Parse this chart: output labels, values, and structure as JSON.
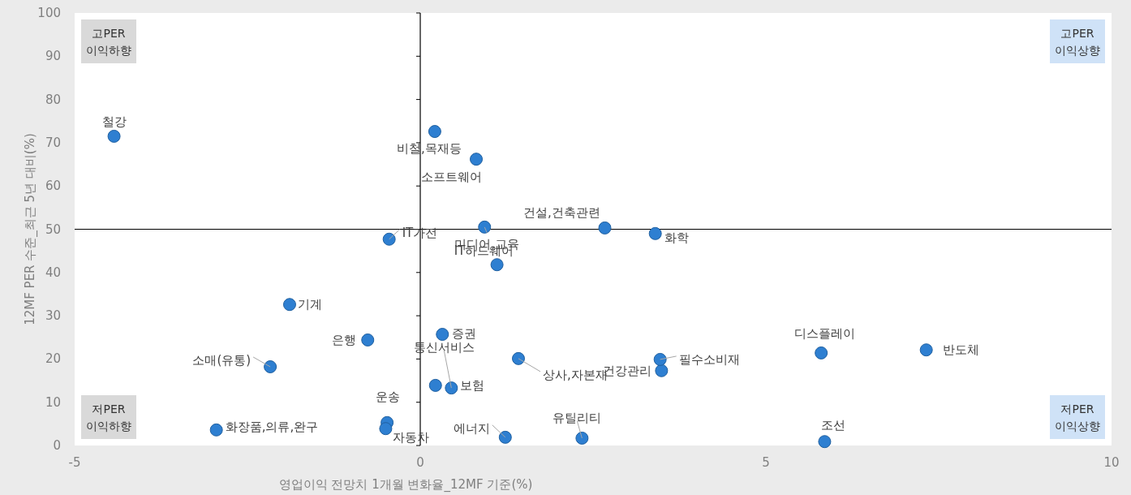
{
  "chart_data": {
    "type": "scatter",
    "xlabel": "영업이익 전망치 1개월 변화율_12MF 기준(%)",
    "ylabel": "12MF PER 수준_최근 5년 대비(%)",
    "xlim": [
      -5,
      10
    ],
    "xticks": [
      -5,
      0,
      5,
      10
    ],
    "ylim": [
      0,
      100
    ],
    "yticks": [
      0,
      10,
      20,
      30,
      40,
      50,
      60,
      70,
      80,
      90,
      100
    ],
    "grid": false,
    "marker": "circle",
    "ref_lines": [
      {
        "axis": "y",
        "value": 50,
        "color": "#000000"
      },
      {
        "axis": "x",
        "value": 0,
        "color": "#000000"
      }
    ],
    "series": [
      {
        "color": "#2e7fd1",
        "x": [
          -4.43,
          0.21,
          0.81,
          2.67,
          3.4,
          0.93,
          1.11,
          -0.45,
          -1.89,
          -0.76,
          0.32,
          0.45,
          0.22,
          1.42,
          3.49,
          3.47,
          5.8,
          7.32,
          -2.17,
          -2.95,
          -0.48,
          -0.5,
          1.23,
          2.34,
          5.85
        ],
        "values": [
          71.5,
          72.6,
          66.2,
          50.3,
          49.0,
          50.5,
          41.8,
          47.7,
          32.6,
          24.4,
          25.7,
          13.3,
          13.9,
          20.1,
          17.3,
          19.9,
          21.4,
          22.1,
          18.2,
          3.6,
          5.3,
          3.9,
          1.9,
          1.7,
          0.9
        ]
      }
    ],
    "annotations": [
      "고PER\n이익하향",
      "고PER\n이익상향",
      "저PER\n이익하향",
      "저PER\n이익상향",
      {
        "text": "철강",
        "x": -4.43,
        "y": 71.5
      },
      {
        "text": "비철,목재등",
        "x": 0.21,
        "y": 72.6
      },
      {
        "text": "소프트웨어",
        "x": 0.81,
        "y": 66.2
      },
      {
        "text": "건설,건축관련",
        "x": 2.67,
        "y": 50.3
      },
      {
        "text": "화학",
        "x": 3.4,
        "y": 49.0
      },
      {
        "text": "미디어,교육",
        "x": 0.93,
        "y": 50.5
      },
      {
        "text": "IT하드웨어",
        "x": 1.11,
        "y": 41.8
      },
      {
        "text": "IT가전",
        "x": -0.45,
        "y": 47.7
      },
      {
        "text": "기계",
        "x": -1.89,
        "y": 32.6
      },
      {
        "text": "은행",
        "x": -0.76,
        "y": 24.4
      },
      {
        "text": "증권",
        "x": 0.32,
        "y": 25.7
      },
      {
        "text": "통신서비스",
        "x": 0.45,
        "y": 13.3
      },
      {
        "text": "보험",
        "x": 0.22,
        "y": 13.9
      },
      {
        "text": "상사,자본재",
        "x": 1.42,
        "y": 20.1
      },
      {
        "text": "건강관리",
        "x": 3.49,
        "y": 17.3
      },
      {
        "text": "필수소비재",
        "x": 3.47,
        "y": 19.9
      },
      {
        "text": "디스플레이",
        "x": 5.8,
        "y": 21.4
      },
      {
        "text": "반도체",
        "x": 7.32,
        "y": 22.1
      },
      {
        "text": "소매(유통)",
        "x": -2.17,
        "y": 18.2
      },
      {
        "text": "화장품,의류,완구",
        "x": -2.95,
        "y": 3.6
      },
      {
        "text": "운송",
        "x": -0.48,
        "y": 5.3
      },
      {
        "text": "자동차",
        "x": -0.5,
        "y": 3.9
      },
      {
        "text": "에너지",
        "x": 1.23,
        "y": 1.9
      },
      {
        "text": "유틸리티",
        "x": 2.34,
        "y": 1.7
      },
      {
        "text": "조선",
        "x": 5.85,
        "y": 0.9
      }
    ]
  }
}
